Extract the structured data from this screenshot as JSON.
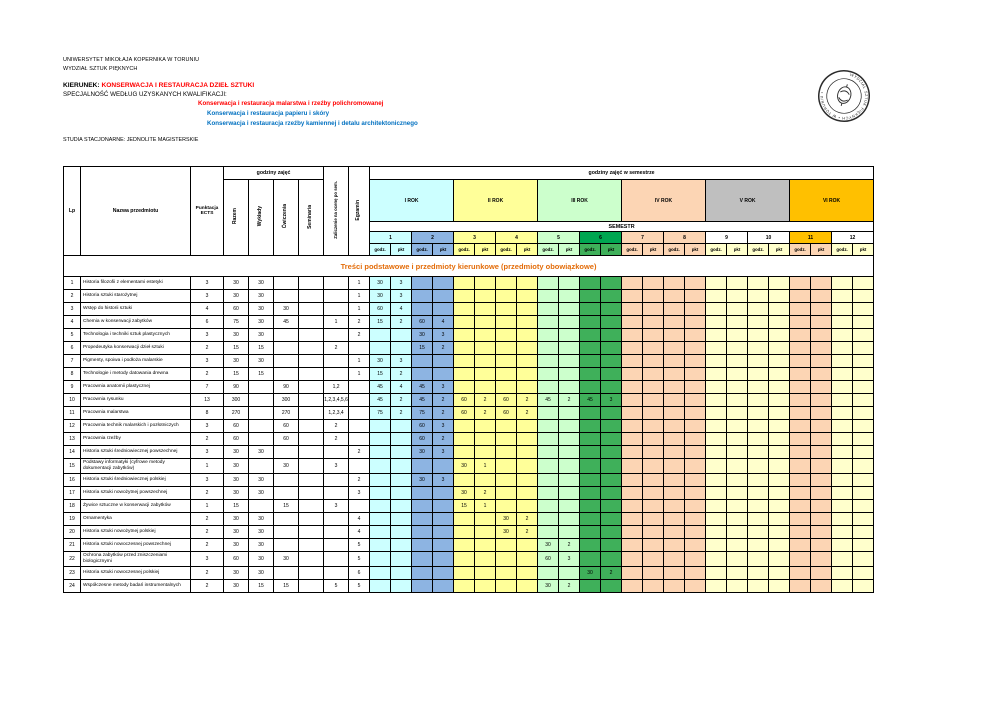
{
  "header": {
    "university": "UNIWERSYTET MIKOŁAJA KOPERNIKA W TORUNIU",
    "faculty": "WYDZIAŁ SZTUK PIĘKNYCH",
    "kierunek_label": "KIERUNEK:",
    "kierunek_value": "KONSERWACJA I RESTAURACJA DZIEŁ SZTUKI",
    "specjalnosc_label": "SPECJALNOŚĆ WEDŁUG UZYSKANYCH KWALIFIKACJI:",
    "specializations": [
      {
        "text": "Konserwacja i restauracja malarstwa i rzeźby polichromowanej",
        "color": "#ff0000"
      },
      {
        "text": "Konserwacja i restauracja papieru i skóry",
        "color": "#0070c0"
      },
      {
        "text": "Konserwacja i restauracja rzeźby kamiennej i detalu architektonicznego",
        "color": "#0070c0"
      }
    ],
    "studies": "STUDIA STACJONARNE:  JEDNOLITE MAGISTERSKIE"
  },
  "seal": {
    "text": "WYDZIAŁ SZTUK PIĘKNYCH • W TORUNIU •"
  },
  "table": {
    "columns": {
      "lp": "Lp",
      "nazwa": "Nazwa przedmiotu",
      "ects": "Punktacja ECTS",
      "hours_group": "godziny zajęć",
      "razem": "Razem",
      "wyklady": "Wykłady",
      "cwiczenia": "Ćwiczenia",
      "seminaria": "Seminaria",
      "zaliczenie": "Zaliczenie na ocenę po sem.",
      "egzamin": "Egzamin",
      "sem_group": "godziny zajęć w semestrze",
      "semestr_label": "SEMESTR",
      "godz": "godz.",
      "pkt": "pkt"
    },
    "years": [
      {
        "label": "I ROK",
        "color": "#ccffff"
      },
      {
        "label": "II ROK",
        "color": "#ffff99"
      },
      {
        "label": "III ROK",
        "color": "#ccffcc"
      },
      {
        "label": "IV ROK",
        "color": "#fcd5b4"
      },
      {
        "label": "V ROK",
        "color": "#bfbfbf"
      },
      {
        "label": "VI ROK",
        "color": "#ffc000"
      }
    ],
    "semesters": [
      {
        "num": "1",
        "color": "#ccffff"
      },
      {
        "num": "2",
        "color": "#8db4e2"
      },
      {
        "num": "3",
        "color": "#ffff99"
      },
      {
        "num": "4",
        "color": "#ffff99"
      },
      {
        "num": "5",
        "color": "#ccffcc"
      },
      {
        "num": "6",
        "color": "#3fb05a",
        "header_color": "#00a651"
      },
      {
        "num": "7",
        "color": "#fcd5b4"
      },
      {
        "num": "8",
        "color": "#fcd5b4"
      },
      {
        "num": "9",
        "color": "#ffffcc",
        "header_color": "#ffffff"
      },
      {
        "num": "10",
        "color": "#ffffcc",
        "header_color": "#ffffff"
      },
      {
        "num": "11",
        "color": "#fcd5b4",
        "header_color": "#ffc000"
      },
      {
        "num": "12",
        "color": "#ffffcc",
        "header_color": "#ffffff"
      }
    ],
    "section_title": "Treści podstawowe i przedmioty kierunkowe (przedmioty obowiązkowe)",
    "section_title_color": "#e36c09",
    "rows": [
      {
        "lp": "1",
        "name": "Historia filozofii z elementami estetyki",
        "ects": "3",
        "razem": "30",
        "wyklady": "30",
        "cwiczenia": "",
        "seminaria": "",
        "zal": "",
        "egz": "1",
        "sems": {
          "1": [
            "30",
            "3"
          ]
        }
      },
      {
        "lp": "2",
        "name": "Historia sztuki starożytnej",
        "ects": "3",
        "razem": "30",
        "wyklady": "30",
        "cwiczenia": "",
        "seminaria": "",
        "zal": "",
        "egz": "1",
        "sems": {
          "1": [
            "30",
            "3"
          ]
        }
      },
      {
        "lp": "3",
        "name": "Wstęp do historii sztuki",
        "ects": "4",
        "razem": "60",
        "wyklady": "30",
        "cwiczenia": "30",
        "seminaria": "",
        "zal": "",
        "egz": "1",
        "sems": {
          "1": [
            "60",
            "4"
          ]
        }
      },
      {
        "lp": "4",
        "name": "Chemia w konserwacji zabytków",
        "ects": "6",
        "razem": "75",
        "wyklady": "30",
        "cwiczenia": "45",
        "seminaria": "",
        "zal": "1",
        "egz": "2",
        "sems": {
          "1": [
            "15",
            "2"
          ],
          "2": [
            "60",
            "4"
          ]
        }
      },
      {
        "lp": "5",
        "name": "Technologia i techniki sztuk plastycznych",
        "ects": "3",
        "razem": "30",
        "wyklady": "30",
        "cwiczenia": "",
        "seminaria": "",
        "zal": "",
        "egz": "2",
        "sems": {
          "2": [
            "30",
            "3"
          ]
        }
      },
      {
        "lp": "6",
        "name": "Propedeutyka konserwacji dzieł sztuki",
        "ects": "2",
        "razem": "15",
        "wyklady": "15",
        "cwiczenia": "",
        "seminaria": "",
        "zal": "2",
        "egz": "",
        "sems": {
          "2": [
            "15",
            "2"
          ]
        }
      },
      {
        "lp": "7",
        "name": "Pigmenty, spoiwa i podłoża malarskie",
        "ects": "3",
        "razem": "30",
        "wyklady": "30",
        "cwiczenia": "",
        "seminaria": "",
        "zal": "",
        "egz": "1",
        "sems": {
          "1": [
            "30",
            "3"
          ]
        }
      },
      {
        "lp": "8",
        "name": "Technologie i metody datowania drewna",
        "ects": "2",
        "razem": "15",
        "wyklady": "15",
        "cwiczenia": "",
        "seminaria": "",
        "zal": "",
        "egz": "1",
        "sems": {
          "1": [
            "15",
            "2"
          ]
        }
      },
      {
        "lp": "9",
        "name": "Pracownia anatomii plastycznej",
        "ects": "7",
        "razem": "90",
        "wyklady": "",
        "cwiczenia": "90",
        "seminaria": "",
        "zal": "1,2",
        "egz": "",
        "sems": {
          "1": [
            "45",
            "4"
          ],
          "2": [
            "45",
            "3"
          ]
        }
      },
      {
        "lp": "10",
        "name": "Pracownia rysunku",
        "ects": "13",
        "razem": "300",
        "wyklady": "",
        "cwiczenia": "300",
        "seminaria": "",
        "zal": "1,2,3,4,5,6",
        "egz": "",
        "sems": {
          "1": [
            "45",
            "2"
          ],
          "2": [
            "45",
            "2"
          ],
          "3": [
            "60",
            "2"
          ],
          "4": [
            "60",
            "2"
          ],
          "5": [
            "45",
            "2"
          ],
          "6": [
            "45",
            "3"
          ]
        }
      },
      {
        "lp": "11",
        "name": "Pracownia malarstwa",
        "ects": "8",
        "razem": "270",
        "wyklady": "",
        "cwiczenia": "270",
        "seminaria": "",
        "zal": "1,2,3,4",
        "egz": "",
        "sems": {
          "1": [
            "75",
            "2"
          ],
          "2": [
            "75",
            "2"
          ],
          "3": [
            "60",
            "2"
          ],
          "4": [
            "60",
            "2"
          ]
        }
      },
      {
        "lp": "12",
        "name": "Pracownia technik malarskich i pozłotniczych",
        "ects": "3",
        "razem": "60",
        "wyklady": "",
        "cwiczenia": "60",
        "seminaria": "",
        "zal": "2",
        "egz": "",
        "sems": {
          "2": [
            "60",
            "3"
          ]
        }
      },
      {
        "lp": "13",
        "name": "Pracownia rzeźby",
        "ects": "2",
        "razem": "60",
        "wyklady": "",
        "cwiczenia": "60",
        "seminaria": "",
        "zal": "2",
        "egz": "",
        "sems": {
          "2": [
            "60",
            "2"
          ]
        }
      },
      {
        "lp": "14",
        "name": "Historia sztuki średniowiecznej powszechnej",
        "ects": "3",
        "razem": "30",
        "wyklady": "30",
        "cwiczenia": "",
        "seminaria": "",
        "zal": "",
        "egz": "2",
        "sems": {
          "2": [
            "30",
            "3"
          ]
        }
      },
      {
        "lp": "15",
        "name": "Podstawy informatyki (cyfrowe metody dokumentacji zabytków)",
        "ects": "1",
        "razem": "30",
        "wyklady": "",
        "cwiczenia": "30",
        "seminaria": "",
        "zal": "3",
        "egz": "",
        "sems": {
          "3": [
            "30",
            "1"
          ]
        }
      },
      {
        "lp": "16",
        "name": "Historia sztuki średniowiecznej polskiej",
        "ects": "3",
        "razem": "30",
        "wyklady": "30",
        "cwiczenia": "",
        "seminaria": "",
        "zal": "",
        "egz": "2",
        "sems": {
          "2": [
            "30",
            "3"
          ]
        }
      },
      {
        "lp": "17",
        "name": "Historia sztuki nowożytnej powszechnej",
        "ects": "2",
        "razem": "30",
        "wyklady": "30",
        "cwiczenia": "",
        "seminaria": "",
        "zal": "",
        "egz": "3",
        "sems": {
          "3": [
            "30",
            "2"
          ]
        }
      },
      {
        "lp": "18",
        "name": "Żywice sztuczne w konserwacji zabytków",
        "ects": "1",
        "razem": "15",
        "wyklady": "",
        "cwiczenia": "15",
        "seminaria": "",
        "zal": "3",
        "egz": "",
        "sems": {
          "3": [
            "15",
            "1"
          ]
        }
      },
      {
        "lp": "19",
        "name": "Ornamentyka",
        "ects": "2",
        "razem": "30",
        "wyklady": "30",
        "cwiczenia": "",
        "seminaria": "",
        "zal": "",
        "egz": "4",
        "sems": {
          "4": [
            "30",
            "2"
          ]
        }
      },
      {
        "lp": "20",
        "name": "Historia sztuki nowożytnej polskiej",
        "ects": "2",
        "razem": "30",
        "wyklady": "30",
        "cwiczenia": "",
        "seminaria": "",
        "zal": "",
        "egz": "4",
        "sems": {
          "4": [
            "30",
            "2"
          ]
        }
      },
      {
        "lp": "21",
        "name": "Historia sztuki nowoczesnej powszechnej",
        "ects": "2",
        "razem": "30",
        "wyklady": "30",
        "cwiczenia": "",
        "seminaria": "",
        "zal": "",
        "egz": "5",
        "sems": {
          "5": [
            "30",
            "2"
          ]
        }
      },
      {
        "lp": "22",
        "name": "Ochrona zabytków przed zniszczeniami biologicznymi",
        "ects": "3",
        "razem": "60",
        "wyklady": "30",
        "cwiczenia": "30",
        "seminaria": "",
        "zal": "",
        "egz": "5",
        "sems": {
          "5": [
            "60",
            "3"
          ]
        }
      },
      {
        "lp": "23",
        "name": "Historia sztuki nowoczesnej polskiej",
        "ects": "2",
        "razem": "30",
        "wyklady": "30",
        "cwiczenia": "",
        "seminaria": "",
        "zal": "",
        "egz": "6",
        "sems": {
          "6": [
            "30",
            "2"
          ]
        }
      },
      {
        "lp": "24",
        "name": "Współczesne metody badań instrumentalnych",
        "ects": "2",
        "razem": "30",
        "wyklady": "15",
        "cwiczenia": "15",
        "seminaria": "",
        "zal": "5",
        "egz": "5",
        "sems": {
          "5": [
            "30",
            "2"
          ]
        }
      }
    ]
  }
}
